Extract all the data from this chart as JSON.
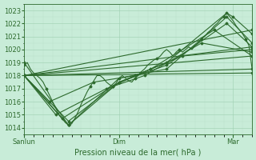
{
  "title": "Pression niveau de la mer( hPa )",
  "bg_color": "#c8ecd8",
  "line_color": "#2d6a2d",
  "grid_major_color": "#9ecfb0",
  "grid_minor_color": "#b8dfc8",
  "ylim": [
    1013.5,
    1023.5
  ],
  "xlim": [
    0,
    72
  ],
  "yticks": [
    1014,
    1015,
    1016,
    1017,
    1018,
    1019,
    1020,
    1021,
    1022,
    1023
  ],
  "xtick_positions": [
    0,
    30,
    66
  ],
  "xtick_labels": [
    "Sanlun",
    "Dim",
    "Mar"
  ],
  "lw": 0.8,
  "ms": 1.5,
  "tick_fontsize": 6,
  "xlabel_fontsize": 7,
  "lines": [
    [
      [
        0,
        1018.8
      ],
      [
        1,
        1019.0
      ],
      [
        2,
        1018.5
      ],
      [
        3,
        1018.2
      ],
      [
        4,
        1018.0
      ],
      [
        5,
        1017.8
      ],
      [
        6,
        1017.5
      ],
      [
        7,
        1017.0
      ],
      [
        8,
        1016.5
      ],
      [
        9,
        1016.0
      ],
      [
        10,
        1015.5
      ],
      [
        11,
        1015.0
      ],
      [
        12,
        1014.7
      ],
      [
        13,
        1014.4
      ],
      [
        14,
        1014.2
      ],
      [
        15,
        1014.3
      ],
      [
        16,
        1014.7
      ],
      [
        17,
        1015.2
      ],
      [
        18,
        1015.8
      ],
      [
        19,
        1016.3
      ],
      [
        20,
        1016.8
      ],
      [
        21,
        1017.2
      ],
      [
        22,
        1017.6
      ],
      [
        23,
        1018.0
      ],
      [
        24,
        1018.0
      ],
      [
        25,
        1017.8
      ],
      [
        26,
        1017.5
      ],
      [
        27,
        1017.3
      ],
      [
        28,
        1017.2
      ],
      [
        29,
        1017.4
      ],
      [
        30,
        1017.8
      ],
      [
        31,
        1018.0
      ],
      [
        32,
        1017.8
      ],
      [
        33,
        1017.6
      ],
      [
        34,
        1017.5
      ],
      [
        35,
        1017.8
      ],
      [
        36,
        1018.0
      ],
      [
        37,
        1018.3
      ],
      [
        38,
        1018.5
      ],
      [
        39,
        1018.8
      ],
      [
        40,
        1019.0
      ],
      [
        41,
        1019.2
      ],
      [
        42,
        1019.3
      ],
      [
        43,
        1019.5
      ],
      [
        44,
        1019.8
      ],
      [
        45,
        1020.0
      ],
      [
        46,
        1019.8
      ],
      [
        47,
        1019.5
      ],
      [
        48,
        1019.8
      ],
      [
        49,
        1020.0
      ],
      [
        50,
        1019.8
      ],
      [
        51,
        1020.0
      ],
      [
        52,
        1020.2
      ],
      [
        53,
        1020.0
      ],
      [
        54,
        1020.3
      ],
      [
        55,
        1020.5
      ],
      [
        56,
        1020.8
      ],
      [
        57,
        1021.0
      ],
      [
        58,
        1021.3
      ],
      [
        59,
        1021.5
      ],
      [
        60,
        1021.8
      ],
      [
        61,
        1022.0
      ],
      [
        62,
        1022.3
      ],
      [
        63,
        1022.5
      ],
      [
        64,
        1022.8
      ],
      [
        65,
        1022.5
      ],
      [
        66,
        1022.2
      ],
      [
        67,
        1021.8
      ],
      [
        68,
        1021.5
      ],
      [
        69,
        1021.2
      ],
      [
        70,
        1020.8
      ],
      [
        71,
        1020.3
      ],
      [
        72,
        1018.5
      ]
    ],
    [
      [
        0,
        1018.0
      ],
      [
        72,
        1021.5
      ]
    ],
    [
      [
        0,
        1018.0
      ],
      [
        72,
        1020.2
      ]
    ],
    [
      [
        0,
        1018.0
      ],
      [
        72,
        1019.5
      ]
    ],
    [
      [
        0,
        1018.0
      ],
      [
        72,
        1018.5
      ]
    ],
    [
      [
        0,
        1018.0
      ],
      [
        72,
        1018.2
      ]
    ],
    [
      [
        0,
        1019.0
      ],
      [
        14,
        1014.2
      ],
      [
        30,
        1017.5
      ],
      [
        45,
        1019.0
      ],
      [
        64,
        1022.8
      ],
      [
        66,
        1022.5
      ],
      [
        72,
        1021.2
      ]
    ],
    [
      [
        0,
        1018.0
      ],
      [
        14,
        1014.2
      ],
      [
        30,
        1017.8
      ],
      [
        45,
        1018.5
      ],
      [
        64,
        1022.5
      ],
      [
        72,
        1020.5
      ]
    ],
    [
      [
        0,
        1018.0
      ],
      [
        14,
        1014.5
      ],
      [
        30,
        1017.5
      ],
      [
        45,
        1018.8
      ],
      [
        64,
        1022.0
      ],
      [
        72,
        1020.2
      ]
    ],
    [
      [
        0,
        1018.0
      ],
      [
        12,
        1014.7
      ],
      [
        28,
        1017.2
      ],
      [
        40,
        1018.5
      ],
      [
        60,
        1021.5
      ],
      [
        72,
        1019.5
      ]
    ],
    [
      [
        0,
        1018.0
      ],
      [
        10,
        1015.0
      ],
      [
        26,
        1017.0
      ],
      [
        38,
        1018.0
      ],
      [
        56,
        1020.5
      ],
      [
        72,
        1019.8
      ]
    ],
    [
      [
        0,
        1018.0
      ],
      [
        8,
        1016.0
      ],
      [
        22,
        1017.5
      ],
      [
        35,
        1018.0
      ],
      [
        50,
        1019.5
      ],
      [
        72,
        1020.0
      ]
    ]
  ]
}
